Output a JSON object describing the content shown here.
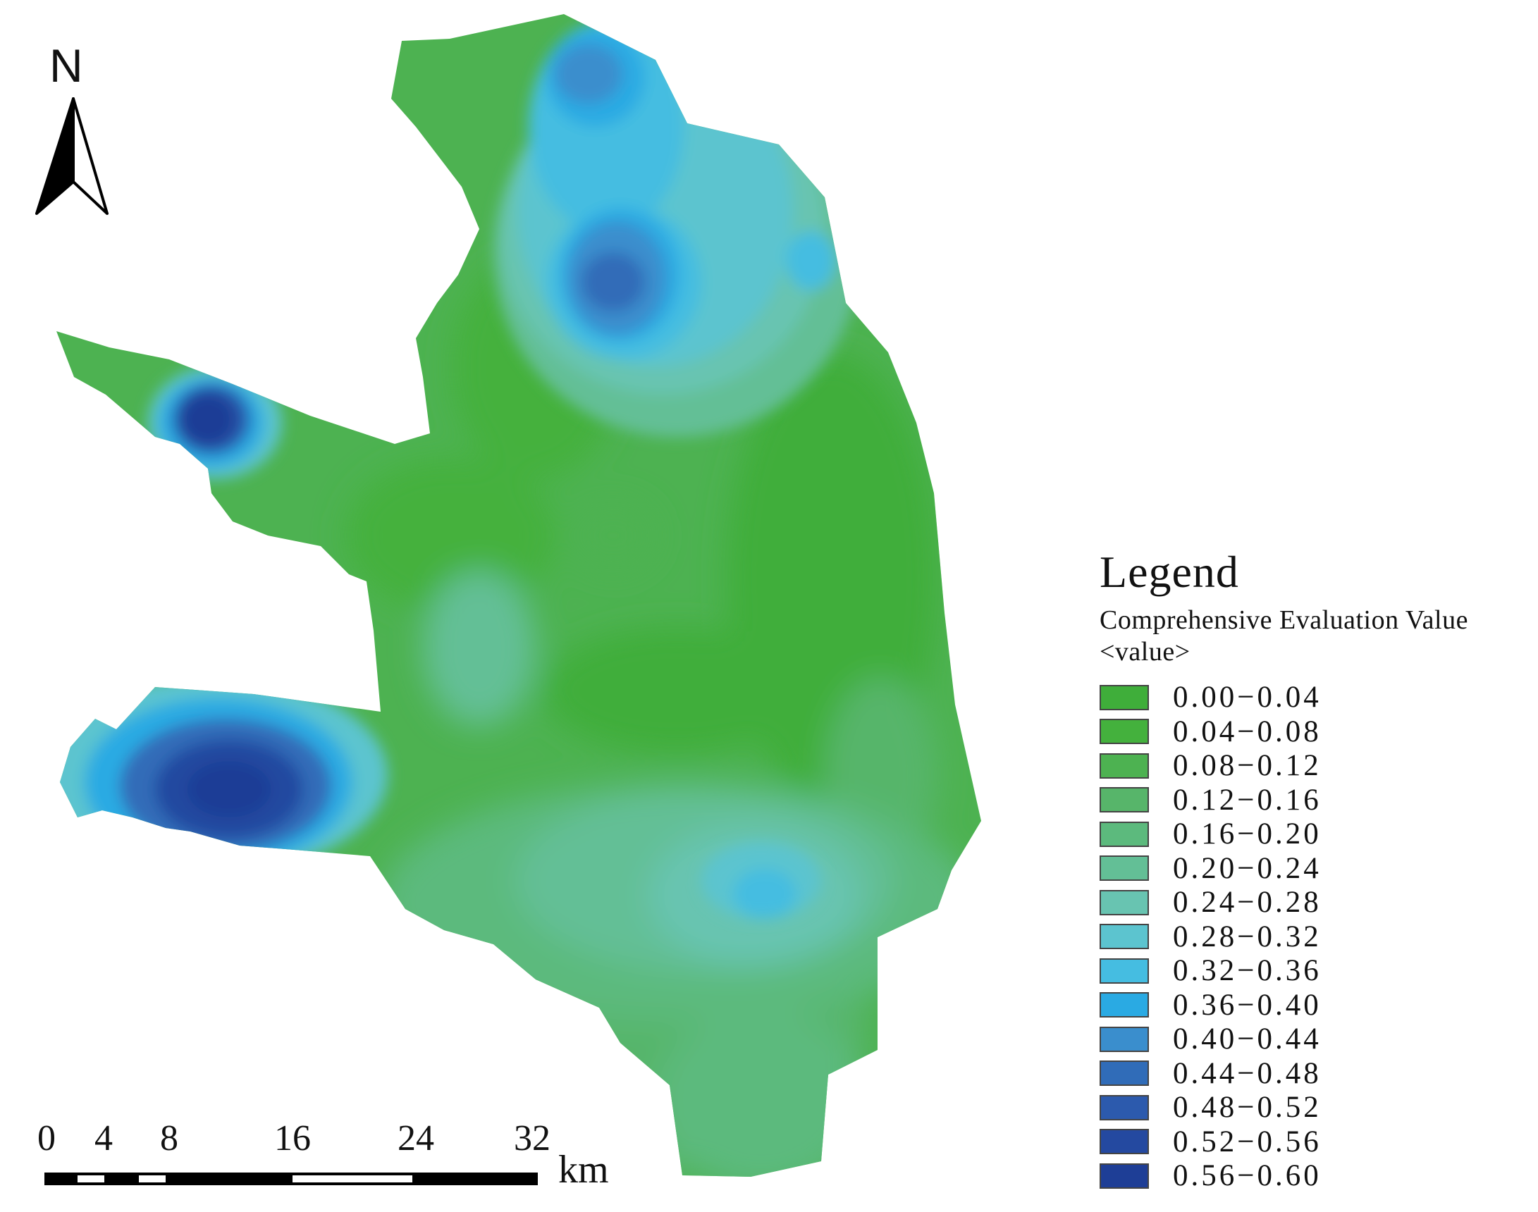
{
  "north_arrow": {
    "label": "N"
  },
  "legend": {
    "title": "Legend",
    "field": "Comprehensive Evaluation Value",
    "subtitle": "<value>",
    "classes": [
      {
        "label": "0.00−0.04",
        "color": "#3fae3a"
      },
      {
        "label": "0.04−0.08",
        "color": "#44b13d"
      },
      {
        "label": "0.08−0.12",
        "color": "#4db251"
      },
      {
        "label": "0.12−0.16",
        "color": "#57b56a"
      },
      {
        "label": "0.16−0.20",
        "color": "#5cba7d"
      },
      {
        "label": "0.20−0.24",
        "color": "#63bf96"
      },
      {
        "label": "0.24−0.28",
        "color": "#68c4b1"
      },
      {
        "label": "0.28−0.32",
        "color": "#5cc4cf"
      },
      {
        "label": "0.32−0.36",
        "color": "#45bde1"
      },
      {
        "label": "0.36−0.40",
        "color": "#2aaae3"
      },
      {
        "label": "0.40−0.44",
        "color": "#3a8ecd"
      },
      {
        "label": "0.44−0.48",
        "color": "#306cb8"
      },
      {
        "label": "0.48−0.52",
        "color": "#2c5aad"
      },
      {
        "label": "0.52−0.56",
        "color": "#2449a0"
      },
      {
        "label": "0.56−0.60",
        "color": "#1e3e96"
      }
    ]
  },
  "scale_bar": {
    "unit": "km",
    "ticks": [
      "0",
      "4",
      "8",
      "16",
      "24",
      "32"
    ]
  }
}
